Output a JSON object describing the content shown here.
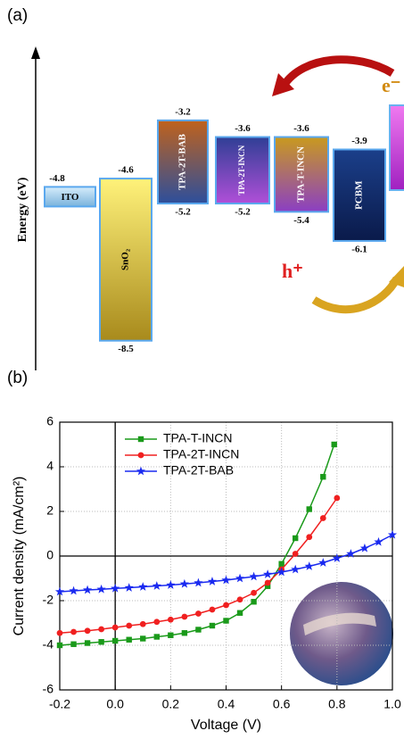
{
  "chart_data": [
    {
      "type": "energy-levels",
      "panel_label": "(a)",
      "ylabel": "Energy (eV)",
      "ylim": [
        -9,
        -2
      ],
      "levels": [
        {
          "name": "ITO",
          "top": -4.8,
          "colors": [
            "#d6ecfb",
            "#7ab3dc"
          ]
        },
        {
          "name": "SnO₂",
          "top": -4.6,
          "bottom": -8.5,
          "colors": [
            "#fff27a",
            "#a88a1c"
          ]
        },
        {
          "name": "TPA-2T-BAB",
          "top": -3.2,
          "bottom": -5.2,
          "colors": [
            "#c0621c",
            "#2d4f9c"
          ]
        },
        {
          "name": "TPA-2T-INCN",
          "top": -3.6,
          "bottom": -5.2,
          "colors": [
            "#2f3f95",
            "#b04fd8"
          ]
        },
        {
          "name": "TPA-T-INCN",
          "top": -3.6,
          "bottom": -5.4,
          "colors": [
            "#c99a1e",
            "#8b3fc4"
          ]
        },
        {
          "name": "PCBM",
          "top": -3.9,
          "bottom": -6.1,
          "colors": [
            "#1b3f8a",
            "#0a1a4a"
          ]
        }
      ],
      "annotations": [
        "e⁻",
        "h⁺"
      ]
    },
    {
      "type": "line",
      "panel_label": "(b)",
      "xlabel": "Voltage (V)",
      "ylabel": "Current density (mA/cm²)",
      "xlim": [
        -0.2,
        1.0
      ],
      "ylim": [
        -6,
        6
      ],
      "xticks": [
        -0.2,
        {
          "value": 0,
          "label": "0.0"
        },
        0.2,
        0.4,
        0.6,
        0.8,
        {
          "value": 1,
          "label": "1.0"
        }
      ],
      "yticks": [
        -6,
        -4,
        -2,
        0,
        2,
        4,
        6
      ],
      "grid": true,
      "series": [
        {
          "name": "TPA-T-INCN",
          "color": "#1a9a1a",
          "marker": "square",
          "x": [
            -0.2,
            -0.15,
            -0.1,
            -0.05,
            0,
            0.05,
            0.1,
            0.15,
            0.2,
            0.25,
            0.3,
            0.35,
            0.4,
            0.45,
            0.5,
            0.55,
            0.6,
            0.65,
            0.7,
            0.75,
            0.79
          ],
          "values": [
            -4.0,
            -3.95,
            -3.9,
            -3.85,
            -3.8,
            -3.75,
            -3.7,
            -3.62,
            -3.55,
            -3.45,
            -3.3,
            -3.12,
            -2.9,
            -2.55,
            -2.05,
            -1.35,
            -0.35,
            0.8,
            2.1,
            3.55,
            5.0
          ]
        },
        {
          "name": "TPA-2T-INCN",
          "color": "#f02020",
          "marker": "circle",
          "x": [
            -0.2,
            -0.15,
            -0.1,
            -0.05,
            0,
            0.05,
            0.1,
            0.15,
            0.2,
            0.25,
            0.3,
            0.35,
            0.4,
            0.45,
            0.5,
            0.55,
            0.6,
            0.65,
            0.7,
            0.75,
            0.8
          ],
          "values": [
            -3.45,
            -3.4,
            -3.35,
            -3.28,
            -3.2,
            -3.12,
            -3.05,
            -2.95,
            -2.85,
            -2.72,
            -2.58,
            -2.4,
            -2.2,
            -1.95,
            -1.65,
            -1.2,
            -0.6,
            0.1,
            0.85,
            1.7,
            2.6
          ]
        },
        {
          "name": "TPA-2T-BAB",
          "color": "#1a2af0",
          "marker": "star",
          "x": [
            -0.2,
            -0.15,
            -0.1,
            -0.05,
            0,
            0.05,
            0.1,
            0.15,
            0.2,
            0.25,
            0.3,
            0.35,
            0.4,
            0.45,
            0.5,
            0.55,
            0.6,
            0.65,
            0.7,
            0.75,
            0.8,
            0.85,
            0.9,
            0.95,
            1.0
          ],
          "values": [
            -1.6,
            -1.56,
            -1.52,
            -1.49,
            -1.45,
            -1.42,
            -1.38,
            -1.34,
            -1.3,
            -1.25,
            -1.2,
            -1.14,
            -1.08,
            -1.0,
            -0.92,
            -0.82,
            -0.72,
            -0.6,
            -0.46,
            -0.3,
            -0.1,
            0.1,
            0.35,
            0.63,
            0.95
          ]
        }
      ]
    }
  ]
}
